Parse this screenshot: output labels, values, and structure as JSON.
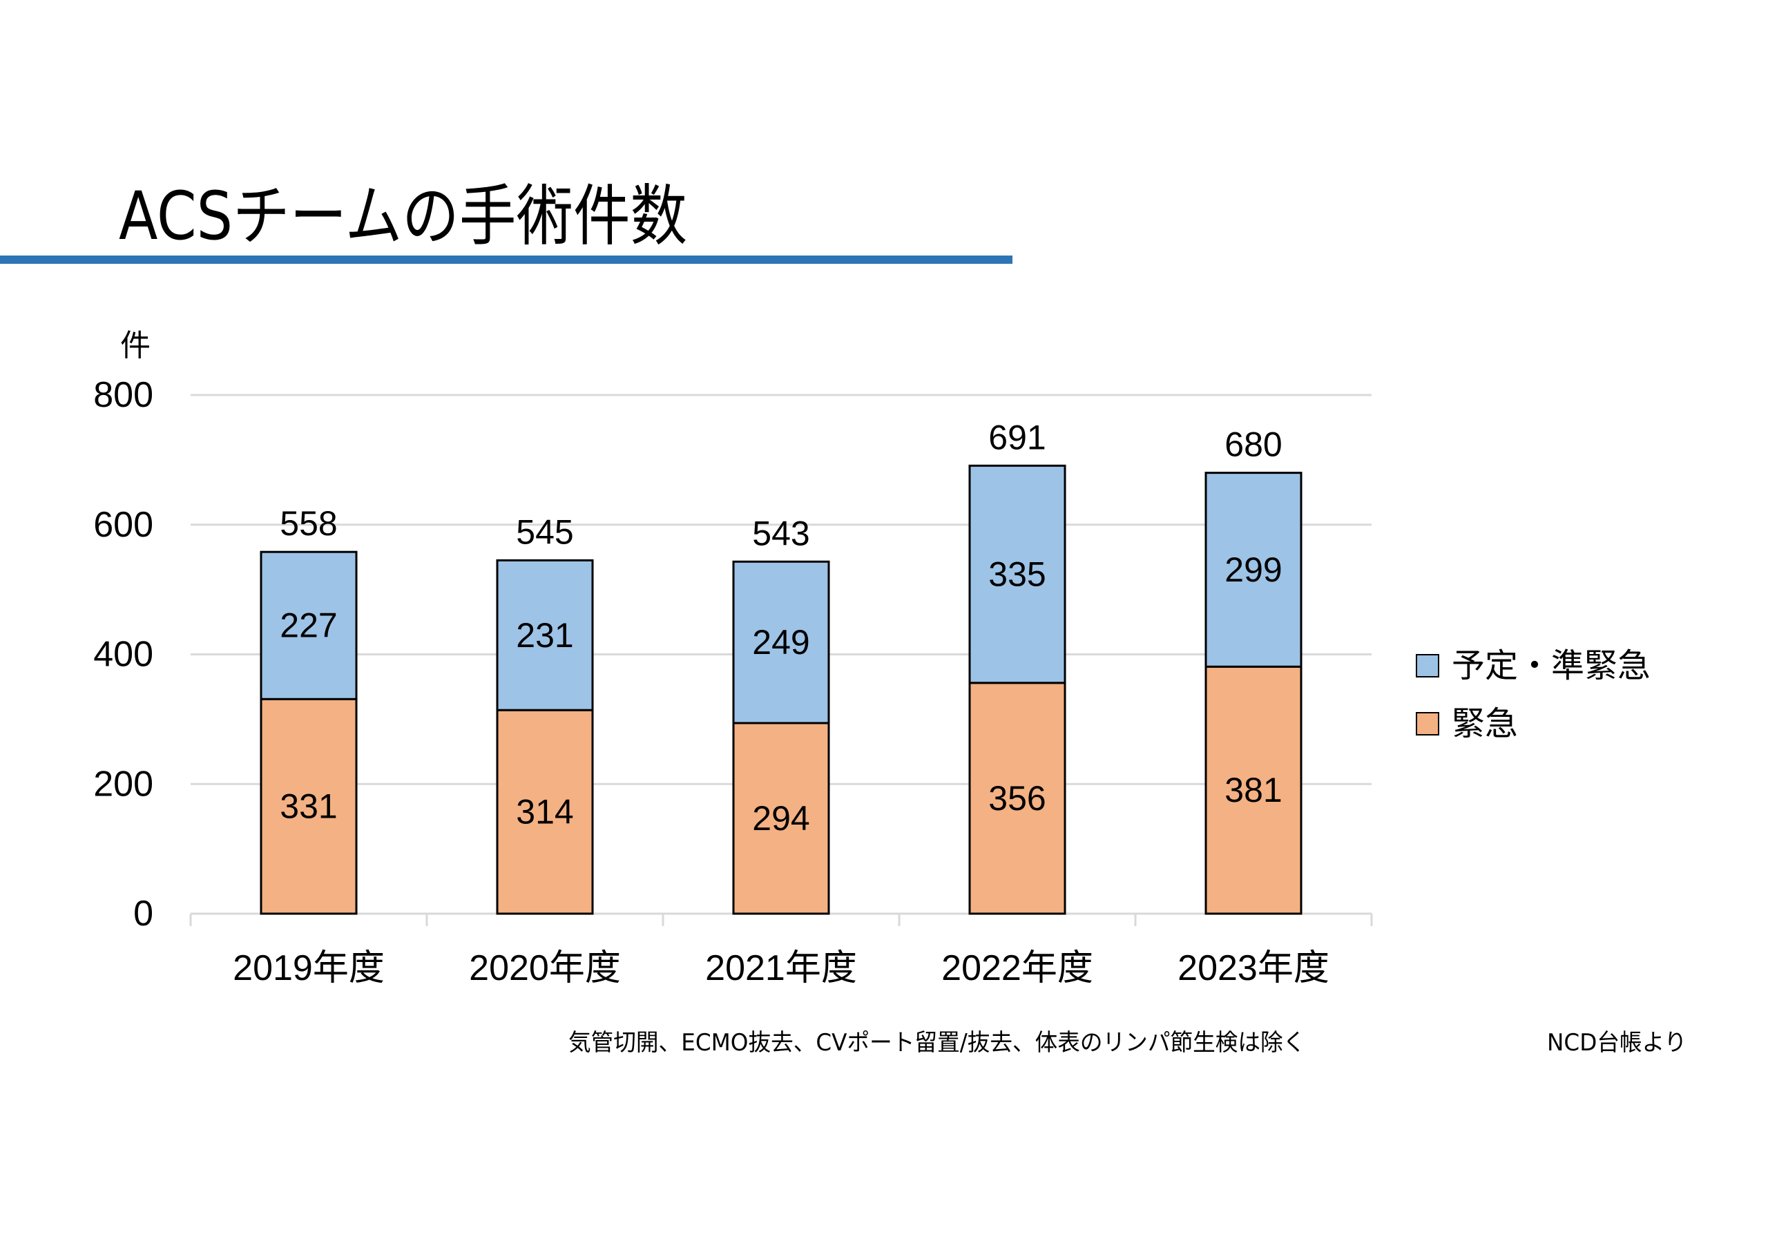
{
  "title": "ACSチームの手術件数",
  "colors": {
    "accent_rule": "#2E75B6",
    "scheduled": "#9DC3E6",
    "emergency": "#F4B183",
    "gridline": "#D9D9D9",
    "bar_outline": "#000000"
  },
  "footnote": "気管切開、ECMO抜去、CVポート留置/抜去、体表のリンパ節生検は除く",
  "source": "NCD台帳より",
  "chart_data": {
    "type": "bar",
    "stacked": true,
    "title": "ACSチームの手術件数",
    "xlabel": "",
    "ylabel": "件",
    "ylim": [
      0,
      800
    ],
    "yticks": [
      0,
      200,
      400,
      600,
      800
    ],
    "ytick_labels": [
      "0",
      "200",
      "400",
      "600",
      "800"
    ],
    "grid": true,
    "legend_position": "right",
    "categories": [
      "2019年度",
      "2020年度",
      "2021年度",
      "2022年度",
      "2023年度"
    ],
    "series": [
      {
        "name": "緊急",
        "color": "#F4B183",
        "values": [
          331,
          314,
          294,
          356,
          381
        ]
      },
      {
        "name": "予定・準緊急",
        "color": "#9DC3E6",
        "values": [
          227,
          231,
          249,
          335,
          299
        ]
      }
    ],
    "totals": [
      558,
      545,
      543,
      691,
      680
    ],
    "legend": [
      "予定・準緊急",
      "緊急"
    ]
  }
}
